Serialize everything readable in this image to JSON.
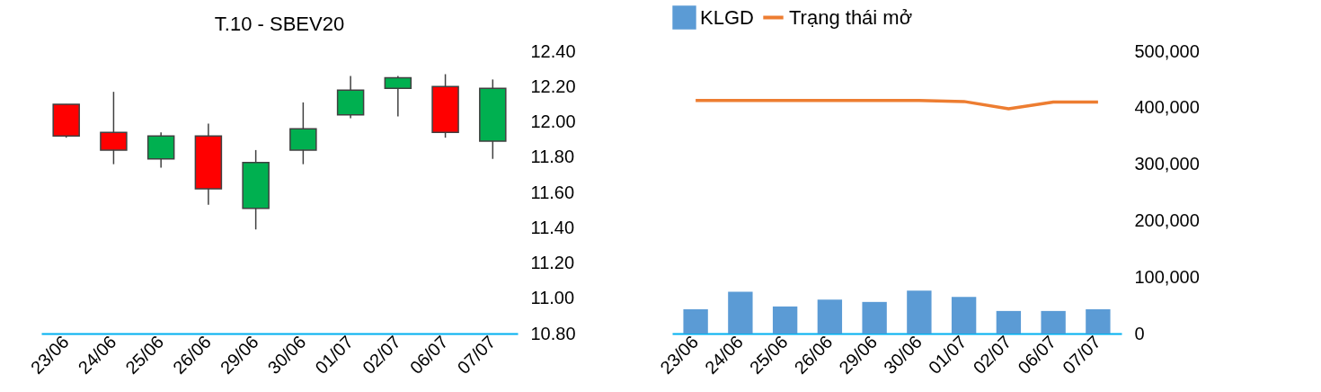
{
  "chart_data": [
    {
      "type": "candlestick",
      "title": "T.10 - SBEV20",
      "categories": [
        "23/06",
        "24/06",
        "25/06",
        "26/06",
        "29/06",
        "30/06",
        "01/07",
        "02/07",
        "06/07",
        "07/07"
      ],
      "ohlc": [
        [
          12.1,
          12.1,
          11.91,
          11.92
        ],
        [
          11.94,
          12.17,
          11.76,
          11.84
        ],
        [
          11.79,
          11.94,
          11.74,
          11.92
        ],
        [
          11.92,
          11.99,
          11.53,
          11.62
        ],
        [
          11.51,
          11.84,
          11.39,
          11.77
        ],
        [
          11.84,
          12.11,
          11.76,
          11.96
        ],
        [
          12.04,
          12.26,
          12.02,
          12.18
        ],
        [
          12.19,
          12.26,
          12.03,
          12.25
        ],
        [
          12.2,
          12.27,
          11.91,
          11.94
        ],
        [
          11.89,
          12.24,
          11.79,
          12.19
        ]
      ],
      "colors": [
        "#ff0000",
        "#ff0000",
        "#00b050",
        "#ff0000",
        "#00b050",
        "#00b050",
        "#00b050",
        "#00b050",
        "#ff0000",
        "#00b050"
      ],
      "ylim": [
        10.8,
        12.4
      ],
      "yticks": [
        {
          "value": 10.8,
          "label": "10.80"
        },
        {
          "value": 11,
          "label": "11.00"
        },
        {
          "value": 11.2,
          "label": "11.20"
        },
        {
          "value": 11.4,
          "label": "11.40"
        },
        {
          "value": 11.6,
          "label": "11.60"
        },
        {
          "value": 11.8,
          "label": "11.80"
        },
        {
          "value": 12,
          "label": "12.00"
        },
        {
          "value": 12.2,
          "label": "12.20"
        },
        {
          "value": 12.4,
          "label": "12.40"
        }
      ],
      "grid": false
    },
    {
      "type": "bar",
      "categories": [
        "23/06",
        "24/06",
        "25/06",
        "26/06",
        "29/06",
        "30/06",
        "01/07",
        "02/07",
        "06/07",
        "07/07"
      ],
      "series": [
        {
          "name": "KLGD",
          "color": "#5b9bd5",
          "values": [
            43000,
            74000,
            48000,
            60000,
            56000,
            76000,
            65000,
            40000,
            40000,
            43000
          ]
        },
        {
          "name": "Trạng thái mở",
          "type": "line",
          "color": "#ed7d31",
          "values": [
            413000,
            413000,
            413000,
            413000,
            413000,
            413000,
            411000,
            398000,
            410000,
            410000
          ]
        }
      ],
      "ylim": [
        0,
        500000
      ],
      "yticks": [
        0,
        {
          "value": 100000,
          "label": "100,000"
        },
        {
          "value": 200000,
          "label": "200,000"
        },
        {
          "value": 300000,
          "label": "300,000"
        },
        {
          "value": 400000,
          "label": "400,000"
        },
        {
          "value": 500000,
          "label": "500,000"
        }
      ],
      "legend": "top",
      "grid": false,
      "marker": "none"
    }
  ]
}
